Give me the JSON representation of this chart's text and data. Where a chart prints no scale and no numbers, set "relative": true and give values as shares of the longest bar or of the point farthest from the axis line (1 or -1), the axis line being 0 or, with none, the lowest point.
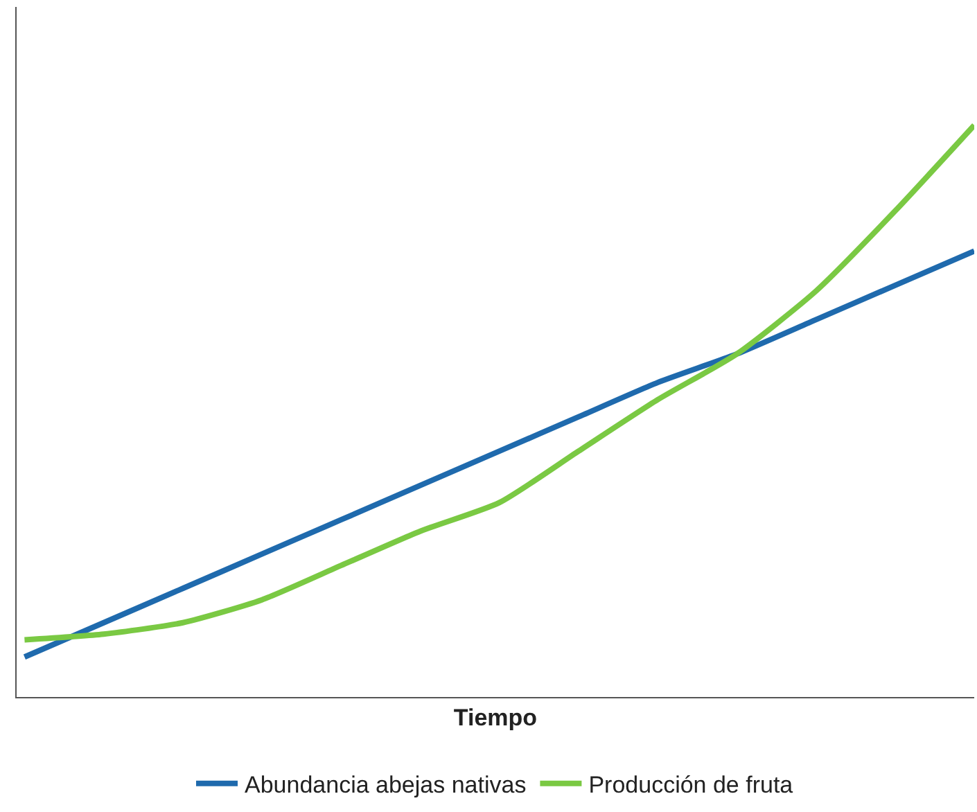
{
  "chart_data": {
    "type": "line",
    "relative": true,
    "xlabel": "Tiempo",
    "legend": "bottom",
    "grid": false,
    "categories": [
      null,
      null,
      null,
      null,
      null,
      null,
      null,
      null,
      null,
      null,
      null,
      null,
      null
    ],
    "series": [
      {
        "name": "Abundancia abejas nativas",
        "color": "#1f6aad",
        "values": [
          0.07,
          0.13,
          0.19,
          0.25,
          0.31,
          0.37,
          0.43,
          0.49,
          0.55,
          0.6,
          0.66,
          0.72,
          0.78
        ]
      },
      {
        "name": "Producción de fruta",
        "color": "#7ac943",
        "values": [
          0.1,
          0.11,
          0.13,
          0.17,
          0.23,
          0.29,
          0.34,
          0.43,
          0.52,
          0.6,
          0.71,
          0.85,
          1.0
        ]
      }
    ]
  }
}
